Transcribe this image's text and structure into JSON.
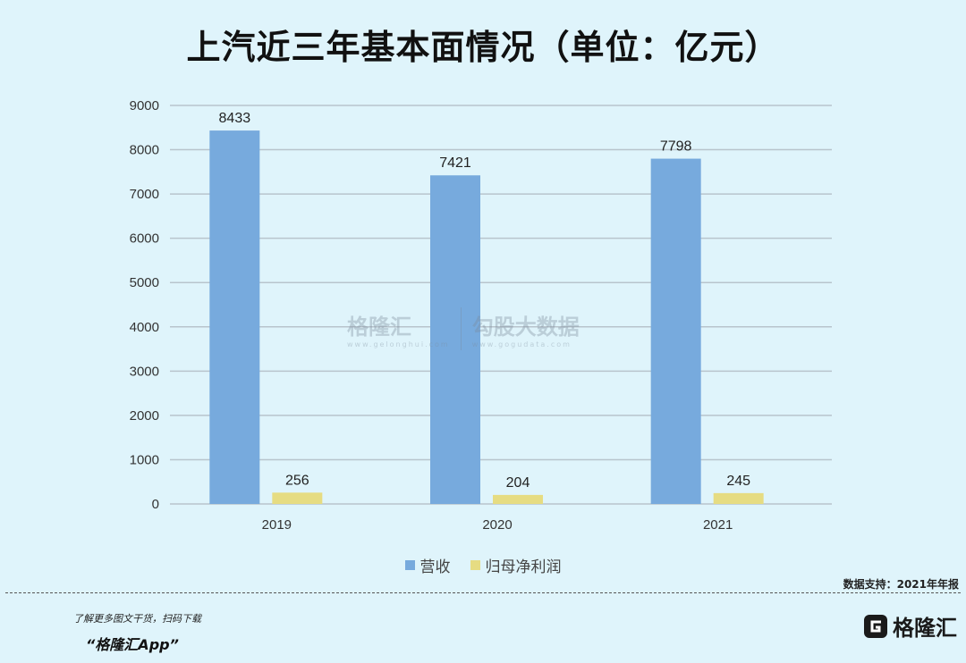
{
  "chart_data": {
    "type": "bar",
    "title": "上汽近三年基本面情况（单位：亿元）",
    "categories": [
      "2019",
      "2020",
      "2021"
    ],
    "series": [
      {
        "name": "营收",
        "values": [
          8433,
          7421,
          7798
        ],
        "color": "#77aadd"
      },
      {
        "name": "归母净利润",
        "values": [
          256,
          204,
          245
        ],
        "color": "#e6dc82"
      }
    ],
    "ylim": [
      0,
      9000
    ],
    "yticks": [
      0,
      1000,
      2000,
      3000,
      4000,
      5000,
      6000,
      7000,
      8000,
      9000
    ],
    "grid": true,
    "legend_position": "bottom"
  },
  "source_note": "数据支持：2021年年报",
  "footer": {
    "promo": "了解更多图文干货，扫码下载",
    "app_name": "“格隆汇App”",
    "logo_text": "格隆汇",
    "logo_icon": "g-logo-icon"
  },
  "watermark": {
    "brand1": "格隆汇",
    "brand1_url": "www.gelonghui.com",
    "brand2": "勾股大数据",
    "brand2_url": "www.gogudata.com"
  },
  "colors": {
    "background": "#dff4fb",
    "grid": "#b8c4cc"
  }
}
